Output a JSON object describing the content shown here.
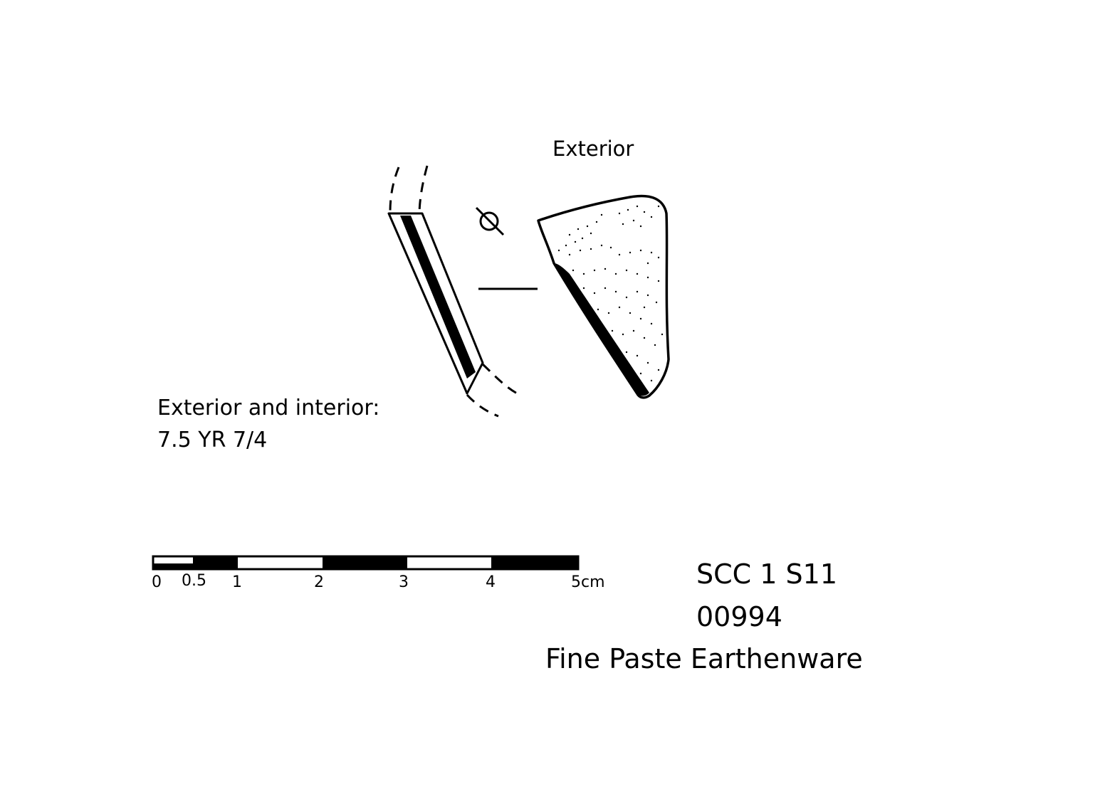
{
  "labels": {
    "exterior": "Exterior",
    "color_note_line1": "Exterior and interior:",
    "color_note_line2": "7.5 YR 7/4"
  },
  "scale": {
    "ticks": [
      "0",
      "0.5",
      "1",
      "2",
      "3",
      "4",
      "5cm"
    ],
    "segment_colors": [
      "#ffffff",
      "#000000",
      "#ffffff",
      "#000000",
      "#ffffff",
      "#000000"
    ]
  },
  "specimen": {
    "site": "SCC 1 S11",
    "number": "00994",
    "ware": "Fine Paste Earthenware"
  },
  "colors": {
    "ink": "#000000",
    "paper": "#ffffff"
  },
  "icons": {
    "diameter": "diameter-symbol-icon"
  }
}
